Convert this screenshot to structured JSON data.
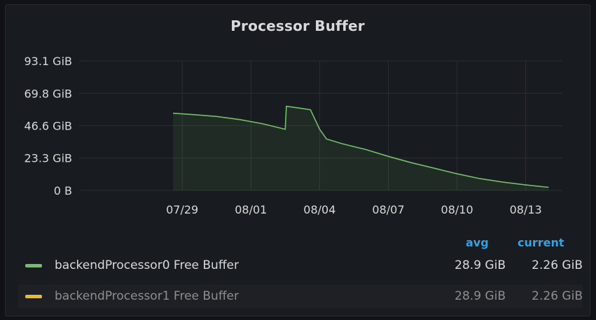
{
  "panel": {
    "title": "Processor Buffer"
  },
  "chart_data": {
    "type": "line",
    "title": "Processor Buffer",
    "x_unit": "date",
    "x_ticks": [
      "07/29",
      "08/01",
      "08/04",
      "08/07",
      "08/10",
      "08/13"
    ],
    "x_tick_days": [
      3,
      6,
      9,
      12,
      15,
      18
    ],
    "x_range_days": [
      -1.5,
      19.6
    ],
    "y_ticks": [
      "0 B",
      "23.3 GiB",
      "46.6 GiB",
      "69.8 GiB",
      "93.1 GiB"
    ],
    "y_tick_values": [
      0,
      23.3,
      46.6,
      69.8,
      93.1
    ],
    "ylim": [
      0,
      93.1
    ],
    "grid": true,
    "legend_placement": "bottom",
    "series": [
      {
        "name": "backendProcessor0 Free Buffer",
        "color": "#73bf69",
        "points_day_gib": [
          [
            2.6,
            55.5
          ],
          [
            3.5,
            54.5
          ],
          [
            4.5,
            53.2
          ],
          [
            5.5,
            51.0
          ],
          [
            6.5,
            48.0
          ],
          [
            7.0,
            46.0
          ],
          [
            7.5,
            44.0
          ],
          [
            7.55,
            60.5
          ],
          [
            8.0,
            59.5
          ],
          [
            8.6,
            58.0
          ],
          [
            9.0,
            44.0
          ],
          [
            9.3,
            37.0
          ],
          [
            10.0,
            33.5
          ],
          [
            11.0,
            29.5
          ],
          [
            12.0,
            24.5
          ],
          [
            13.0,
            20.0
          ],
          [
            14.0,
            16.0
          ],
          [
            15.0,
            12.0
          ],
          [
            16.0,
            8.5
          ],
          [
            17.0,
            6.0
          ],
          [
            18.0,
            4.0
          ],
          [
            19.0,
            2.26
          ]
        ]
      },
      {
        "name": "backendProcessor1 Free Buffer",
        "color": "#eab839"
      }
    ]
  },
  "legend": {
    "headers": {
      "avg": "avg",
      "current": "current"
    },
    "rows": [
      {
        "name": "backendProcessor0 Free Buffer",
        "avg": "28.9 GiB",
        "current": "2.26 GiB",
        "color": "#73bf69",
        "active": true
      },
      {
        "name": "backendProcessor1 Free Buffer",
        "avg": "28.9 GiB",
        "current": "2.26 GiB",
        "color": "#eab839",
        "active": false
      }
    ]
  }
}
